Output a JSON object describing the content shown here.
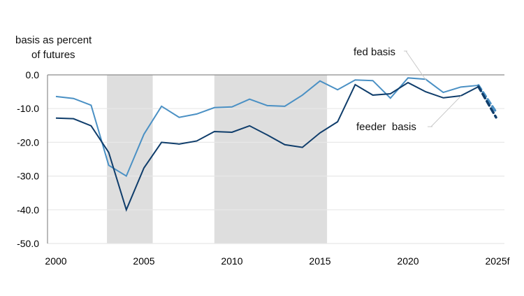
{
  "chart_data": {
    "type": "line",
    "ylabel": "basis as percent\nof futures",
    "ylabel_lines": [
      "basis as percent",
      "of futures"
    ],
    "ylim": [
      -50,
      0
    ],
    "yticks": [
      "0.0",
      "-10.0",
      "-20.0",
      "-30.0",
      "-40.0",
      "-50.0"
    ],
    "ytick_values": [
      0,
      -10,
      -20,
      -30,
      -40,
      -50
    ],
    "xlim": [
      2000,
      2025
    ],
    "xticks": [
      "2000",
      "2005",
      "2010",
      "2015",
      "2020",
      "2025f"
    ],
    "xtick_values": [
      2000,
      2005,
      2010,
      2015,
      2020,
      2025
    ],
    "grid": "horizontal",
    "shaded_periods": [
      [
        2002.9,
        2005.5
      ],
      [
        2009.0,
        2015.4
      ]
    ],
    "x": [
      2000,
      2001,
      2002,
      2003,
      2004,
      2005,
      2006,
      2007,
      2008,
      2009,
      2010,
      2011,
      2012,
      2013,
      2014,
      2015,
      2016,
      2017,
      2018,
      2019,
      2020,
      2021,
      2022,
      2023,
      2024
    ],
    "forecast_x": [
      2024,
      2025
    ],
    "series": [
      {
        "name": "fed basis",
        "color": "#4a90c4",
        "values": [
          -6.4,
          -7.0,
          -9.0,
          -26.8,
          -30.0,
          -17.6,
          -9.3,
          -12.6,
          -11.6,
          -9.7,
          -9.5,
          -7.2,
          -9.1,
          -9.3,
          -6.0,
          -1.8,
          -4.4,
          -1.5,
          -1.7,
          -6.9,
          -0.9,
          -1.3,
          -5.2,
          -3.6,
          -3.1
        ],
        "forecast": [
          -3.1,
          -11.0
        ]
      },
      {
        "name": "feeder  basis",
        "color": "#0f3d6b",
        "values": [
          -12.8,
          -13.0,
          -15.1,
          -23.0,
          -40.0,
          -27.6,
          -20.0,
          -20.5,
          -19.6,
          -16.8,
          -17.0,
          -15.1,
          -17.8,
          -20.7,
          -21.5,
          -17.2,
          -13.9,
          -2.9,
          -6.0,
          -5.6,
          -2.3,
          -5.0,
          -6.8,
          -6.2,
          -3.5
        ],
        "forecast": [
          -3.5,
          -12.6
        ]
      }
    ],
    "colors": {
      "shade": "#dedede",
      "grid": "#e8e8e8",
      "axis": "#8c8c8c",
      "leader": "#c8c8c8"
    }
  }
}
